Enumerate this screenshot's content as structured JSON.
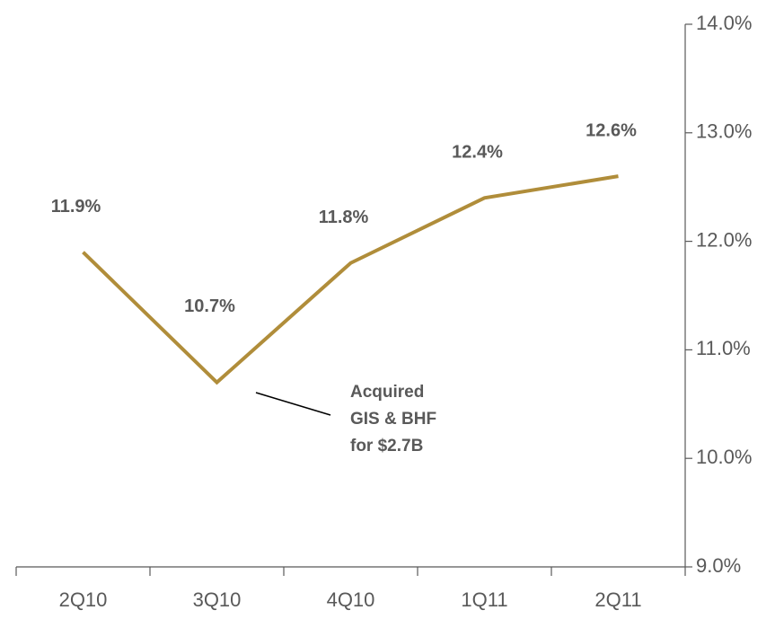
{
  "chart_data": {
    "type": "line",
    "categories": [
      "2Q10",
      "3Q10",
      "4Q10",
      "1Q11",
      "2Q11"
    ],
    "series": [
      {
        "color": "#b08d3a",
        "values": [
          11.9,
          10.7,
          11.8,
          12.4,
          12.6
        ],
        "value_labels": [
          "11.9%",
          "10.7%",
          "11.8%",
          "12.4%",
          "12.6%"
        ]
      }
    ],
    "ylim": [
      9.0,
      14.0
    ],
    "yticks": [
      {
        "value": 9.0,
        "label": "9.0%"
      },
      {
        "value": 10.0,
        "label": "10.0%"
      },
      {
        "value": 11.0,
        "label": "11.0%"
      },
      {
        "value": 12.0,
        "label": "12.0%"
      },
      {
        "value": 13.0,
        "label": "13.0%"
      },
      {
        "value": 14.0,
        "label": "14.0%"
      }
    ],
    "yaxis_side": "right",
    "annotation": {
      "lines": [
        "Acquired",
        "GIS & BHF",
        "for $2.7B"
      ]
    }
  }
}
